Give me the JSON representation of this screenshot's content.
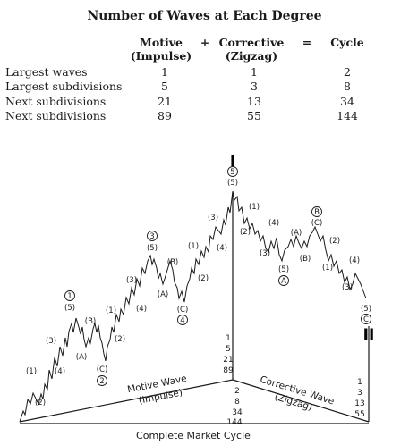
{
  "table": {
    "title": "Number of Waves at Each Degree",
    "headers": {
      "motive_line1": "Motive",
      "motive_line2": "(Impulse)",
      "plus": "+",
      "corrective_line1": "Corrective",
      "corrective_line2": "(Zigzag)",
      "equals": "=",
      "cycle": "Cycle"
    },
    "rows": [
      {
        "label": "Largest waves",
        "motive": "1",
        "corrective": "1",
        "cycle": "2"
      },
      {
        "label": "Largest subdivisions",
        "motive": "5",
        "corrective": "3",
        "cycle": "8"
      },
      {
        "label": "Next subdivisions",
        "motive": "21",
        "corrective": "13",
        "cycle": "34"
      },
      {
        "label": "Next subdivisions",
        "motive": "89",
        "corrective": "55",
        "cycle": "144"
      }
    ]
  },
  "diagram": {
    "top_mark": "I",
    "end_mark": "II",
    "wave_labels": {
      "c1": "1",
      "c2": "2",
      "c3": "3",
      "c4": "4",
      "c5": "5",
      "ca": "A",
      "cb": "B",
      "cc": "C",
      "p1": "(1)",
      "p2": "(2)",
      "p3": "(3)",
      "p4": "(4)",
      "p5": "(5)",
      "pa": "(A)",
      "pb": "(B)",
      "pc": "(C)"
    },
    "motive_counts": [
      "1",
      "5",
      "21",
      "89"
    ],
    "cycle_counts": [
      "2",
      "8",
      "34",
      "144"
    ],
    "corrective_counts": [
      "1",
      "3",
      "13",
      "55"
    ],
    "motive_axis_label_1": "Motive Wave",
    "motive_axis_label_2": "(Impulse)",
    "corrective_axis_label_1": "Corrective Wave",
    "corrective_axis_label_2": "(Zigzag)",
    "bottom_label": "Complete Market Cycle"
  },
  "colors": {
    "ink": "#1a1a1a",
    "background": "#ffffff"
  }
}
